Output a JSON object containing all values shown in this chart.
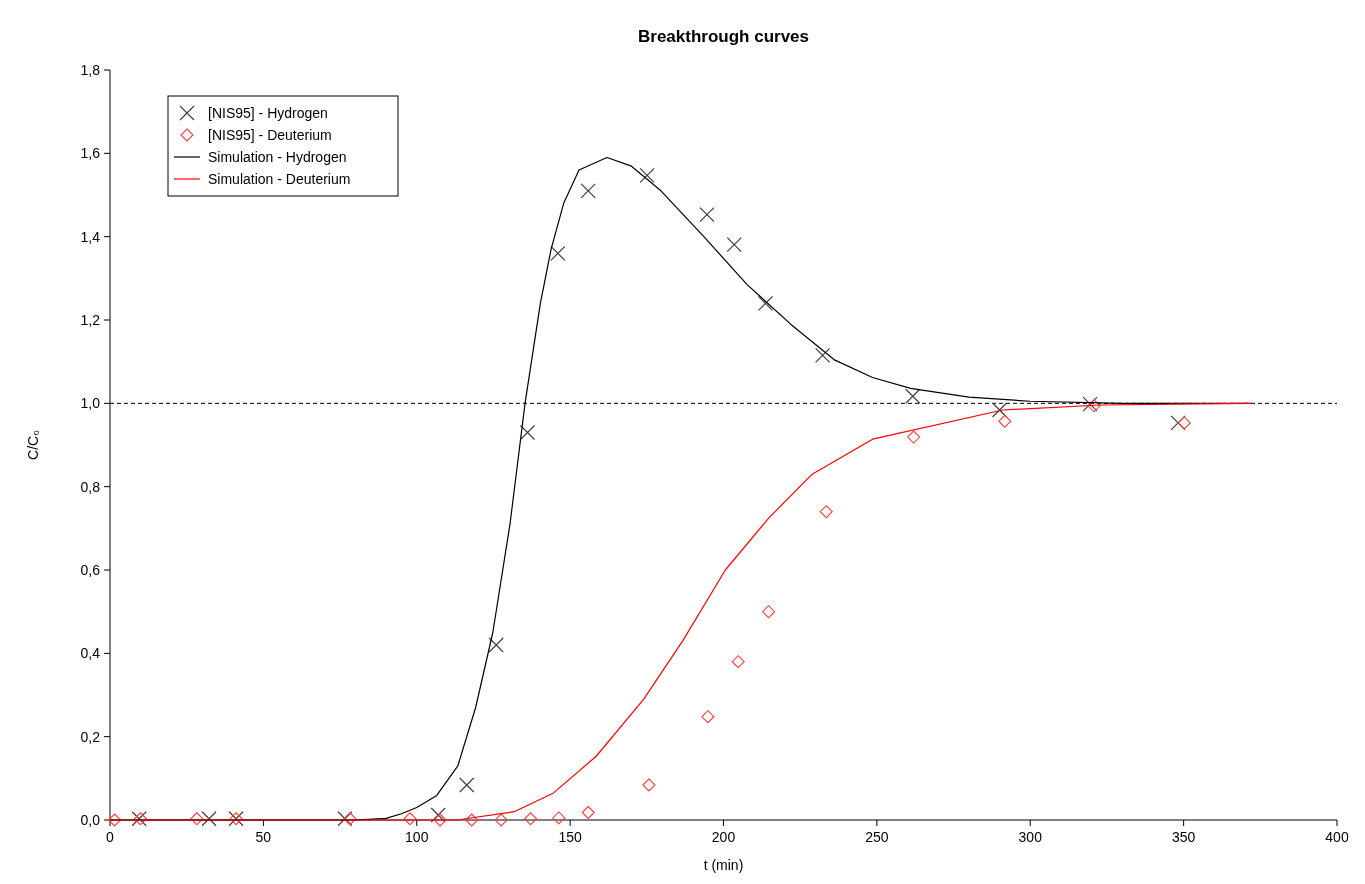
{
  "chart_data": {
    "type": "scatter",
    "title": "Breakthrough  curves",
    "xlabel": "t (min)",
    "ylabel": "C/C₀",
    "xlim": [
      0,
      400
    ],
    "xticks": [
      0,
      50,
      100,
      150,
      200,
      250,
      300,
      350,
      400
    ],
    "ylim": [
      0,
      1.8
    ],
    "yticks": [
      {
        "value": 0,
        "label": "0,0"
      },
      {
        "value": 0.2,
        "label": "0,2"
      },
      {
        "value": 0.4,
        "label": "0,4"
      },
      {
        "value": 0.6,
        "label": "0,6"
      },
      {
        "value": 0.8,
        "label": "0,8"
      },
      {
        "value": 1,
        "label": "1,0"
      },
      {
        "value": 1.2,
        "label": "1,2"
      },
      {
        "value": 1.4,
        "label": "1,4"
      },
      {
        "value": 1.6,
        "label": "1,6"
      },
      {
        "value": 1.8,
        "label": "1,8"
      }
    ],
    "grid": false,
    "legend": "top left",
    "ref_lines": [
      {
        "axis": "y",
        "value": 1,
        "line_style": "dashed",
        "color": "#000000"
      }
    ],
    "series": [
      {
        "name": "[NIS95] - Hydrogen",
        "marker": "cross",
        "color": "#404040",
        "x": [
          9.5,
          32.3,
          41.1,
          76.6,
          107,
          116.3,
          125.9,
          136.1,
          146,
          155.9,
          175.1,
          194.6,
          203.5,
          213.7,
          232.3,
          261.7,
          290,
          319.5,
          348.2
        ],
        "values": [
          0.003,
          0.003,
          0.003,
          0.003,
          0.012,
          0.084,
          0.42,
          0.93,
          1.36,
          1.51,
          1.547,
          1.453,
          1.381,
          1.24,
          1.115,
          1.017,
          0.984,
          0.998,
          0.953
        ]
      },
      {
        "name": "[NIS95] - Deuterium",
        "marker": "diamond",
        "color": "#ff4040",
        "x": [
          1.5,
          9.9,
          28.3,
          41.1,
          78.2,
          97.8,
          107.6,
          117.9,
          127.5,
          137.1,
          146.3,
          155.9,
          175.7,
          194.9,
          204.8,
          214.7,
          233.5,
          262,
          291.7,
          320.8,
          350.2
        ],
        "values": [
          0,
          0.003,
          0.003,
          0.003,
          0.003,
          0.003,
          0,
          0,
          0,
          0.003,
          0.005,
          0.018,
          0.084,
          0.248,
          0.38,
          0.5,
          0.74,
          0.919,
          0.957,
          0.994,
          0.953
        ]
      },
      {
        "name": "Simulation - Hydrogen",
        "type": "line",
        "marker": "none",
        "line_style": "solid",
        "color": "#000000",
        "x": [
          0,
          80,
          90,
          95,
          100,
          106.4,
          113.4,
          119.2,
          124.8,
          130.4,
          135.3,
          140.3,
          143.8,
          147.9,
          152.9,
          162,
          169.8,
          179.6,
          193.6,
          207.7,
          221.9,
          236,
          248.6,
          261,
          280,
          300,
          330,
          372
        ],
        "values": [
          0,
          0,
          0.004,
          0.015,
          0.03,
          0.058,
          0.13,
          0.27,
          0.45,
          0.71,
          1.0,
          1.24,
          1.37,
          1.48,
          1.56,
          1.59,
          1.57,
          1.51,
          1.4,
          1.285,
          1.19,
          1.105,
          1.062,
          1.036,
          1.015,
          1.005,
          1.0,
          1.0
        ]
      },
      {
        "name": "Simulation - Deuterium",
        "type": "line",
        "marker": "none",
        "line_style": "solid",
        "color": "#ff0000",
        "x": [
          0,
          113,
          131.8,
          144.6,
          158.5,
          174,
          186.7,
          200.6,
          214.8,
          228.9,
          248.6,
          291,
          323,
          372
        ],
        "values": [
          0,
          0,
          0.02,
          0.065,
          0.153,
          0.29,
          0.43,
          0.6,
          0.725,
          0.83,
          0.914,
          0.984,
          0.996,
          1.0
        ]
      }
    ]
  }
}
